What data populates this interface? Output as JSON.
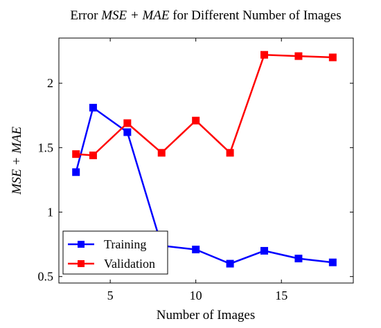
{
  "chart_data": {
    "type": "line",
    "title_prefix": "Error ",
    "title_math": "MSE + MAE",
    "title_suffix": " for Different Number of Images",
    "xlabel": "Number of Images",
    "ylabel_math": "MSE + MAE",
    "xlim": [
      2,
      19.2
    ],
    "ylim": [
      0.45,
      2.35
    ],
    "xticks": [
      5,
      10,
      15
    ],
    "yticks": [
      0.5,
      1,
      1.5,
      2
    ],
    "ytick_labels": [
      "0.5",
      "1",
      "1.5",
      "2"
    ],
    "grid": false,
    "legend_position": "bottom-left",
    "series": [
      {
        "name": "Training",
        "color": "#0000ff",
        "marker": "square",
        "x": [
          3,
          4,
          6,
          8,
          10,
          12,
          14,
          16,
          18
        ],
        "y": [
          1.31,
          1.81,
          1.62,
          0.74,
          0.71,
          0.6,
          0.7,
          0.64,
          0.61
        ]
      },
      {
        "name": "Validation",
        "color": "#ff0000",
        "marker": "square",
        "x": [
          3,
          4,
          6,
          8,
          10,
          12,
          14,
          16,
          18
        ],
        "y": [
          1.45,
          1.44,
          1.69,
          1.46,
          1.71,
          1.46,
          2.22,
          2.21,
          2.2
        ]
      }
    ]
  }
}
